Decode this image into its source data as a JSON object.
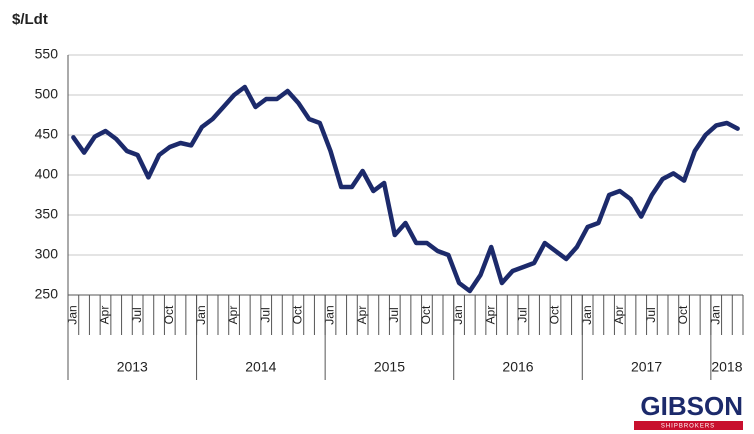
{
  "chart_data": {
    "type": "line",
    "y_label": "$/Ldt",
    "categories": [
      "Jan",
      null,
      null,
      "Apr",
      null,
      null,
      "Jul",
      null,
      null,
      "Oct",
      null,
      null,
      "Jan",
      null,
      null,
      "Apr",
      null,
      null,
      "Jul",
      null,
      null,
      "Oct",
      null,
      null,
      "Jan",
      null,
      null,
      "Apr",
      null,
      null,
      "Jul",
      null,
      null,
      "Oct",
      null,
      null,
      "Jan",
      null,
      null,
      "Apr",
      null,
      null,
      "Jul",
      null,
      null,
      "Oct",
      null,
      null,
      "Jan",
      null,
      null,
      "Apr",
      null,
      null,
      "Jul",
      null,
      null,
      "Oct",
      null,
      null,
      "Jan",
      null,
      null
    ],
    "groups": [
      "2013",
      "2014",
      "2015",
      "2016",
      "2017",
      "2018"
    ],
    "series": [
      {
        "color": "#1c2a6b",
        "values": [
          447,
          428,
          448,
          455,
          445,
          430,
          425,
          397,
          425,
          435,
          440,
          437,
          460,
          470,
          485,
          500,
          510,
          485,
          495,
          495,
          505,
          490,
          470,
          465,
          430,
          385,
          385,
          405,
          380,
          390,
          325,
          340,
          315,
          315,
          305,
          300,
          265,
          255,
          275,
          310,
          265,
          280,
          285,
          290,
          315,
          305,
          295,
          310,
          335,
          340,
          375,
          380,
          370,
          348,
          375,
          395,
          402,
          393,
          430,
          450,
          462,
          465,
          458
        ]
      }
    ],
    "ylim": [
      250,
      550
    ],
    "yticks": [
      250,
      300,
      350,
      400,
      450,
      500,
      550
    ],
    "grid": true
  },
  "logo": {
    "name": "GIBSON",
    "tagline": "SHIPBROKERS"
  }
}
